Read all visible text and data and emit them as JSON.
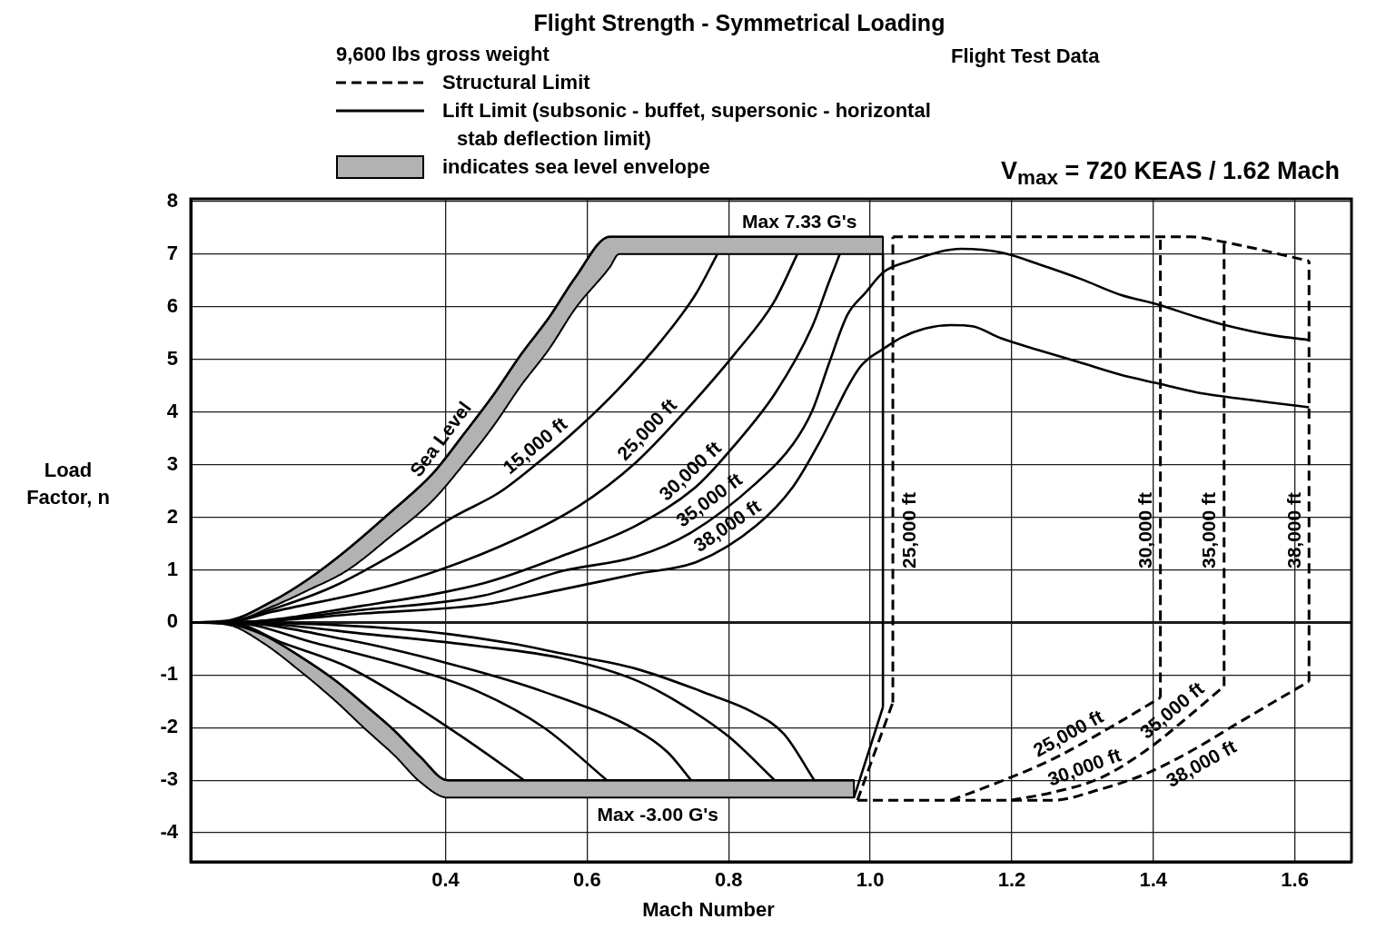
{
  "chart_data": {
    "type": "line",
    "title": "Flight Strength - Symmetrical Loading",
    "subtitle": "Flight Test Data",
    "xlabel": "Mach Number",
    "ylabel": "Load Factor, n",
    "legend_title": "9,600 lbs gross weight",
    "legend": "top left",
    "grid": true,
    "xlim": [
      0.04,
      1.68
    ],
    "xticks": [
      0.4,
      0.6,
      0.8,
      {
        "value": 1,
        "label": "1.0"
      },
      1.2,
      1.4,
      1.6
    ],
    "ylim": [
      -4.55,
      8.05
    ],
    "yticks": [
      -4,
      -3,
      -2,
      -1,
      0,
      1,
      2,
      3,
      4,
      5,
      6,
      7,
      8
    ],
    "series": [
      {
        "name": "Structural Limit",
        "line_style": "dashed",
        "color": "#000000",
        "x": [
          1.032,
          1.452,
          1.5,
          1.62
        ],
        "values": [
          7.33,
          7.33,
          7.23,
          6.87
        ]
      },
      {
        "line_style": "dashed",
        "color": "#000000",
        "x": [
          0.982,
          1.032
        ],
        "values": [
          -3.38,
          -1.52
        ]
      },
      {
        "line_style": "dashed",
        "color": "#000000",
        "x": [
          1.032,
          1.032
        ],
        "values": [
          -1.52,
          7.33
        ]
      },
      {
        "line_style": "dashed",
        "color": "#000000",
        "x": [
          0.982,
          1.258,
          1.323,
          1.389,
          1.454,
          1.52,
          1.62
        ],
        "values": [
          -3.38,
          -3.38,
          -3.18,
          -2.88,
          -2.44,
          -1.91,
          -1.12
        ]
      },
      {
        "line_style": "dashed",
        "color": "#000000",
        "x": [
          1.62,
          1.62
        ],
        "values": [
          -1.12,
          6.87
        ]
      },
      {
        "line_style": "dashed",
        "color": "#000000",
        "x": [
          1.114,
          1.179,
          1.256,
          1.35,
          1.41
        ],
        "values": [
          -3.38,
          -3.05,
          -2.61,
          -1.91,
          -1.43
        ]
      },
      {
        "line_style": "dashed",
        "color": "#000000",
        "x": [
          1.41,
          1.41
        ],
        "values": [
          -1.43,
          7.33
        ]
      },
      {
        "line_style": "dashed",
        "color": "#000000",
        "x": [
          1.199,
          1.258,
          1.323,
          1.389,
          1.454,
          1.5
        ],
        "values": [
          -3.38,
          -3.23,
          -2.97,
          -2.44,
          -1.74,
          -1.21
        ]
      },
      {
        "line_style": "dashed",
        "color": "#000000",
        "x": [
          1.5,
          1.5
        ],
        "values": [
          -1.21,
          7.23
        ]
      },
      {
        "name": "Lift Limit (subsonic - buffet, supersonic - horizontal stab deflection limit)",
        "line_style": "solid",
        "color": "#000000",
        "x": [
          0.04,
          0.091,
          0.155,
          0.241,
          0.327,
          0.412,
          0.476,
          0.531,
          0.588,
          0.643,
          0.707,
          0.754,
          0.784
        ],
        "values": [
          0,
          0.01,
          0.25,
          0.68,
          1.3,
          2.01,
          2.47,
          3.04,
          3.7,
          4.42,
          5.39,
          6.25,
          7.0
        ]
      },
      {
        "line_style": "solid",
        "color": "#000000",
        "x": [
          0.04,
          0.091,
          0.155,
          0.327,
          0.476,
          0.588,
          0.669,
          0.737,
          0.809,
          0.864,
          0.897
        ],
        "values": [
          0,
          0,
          0.2,
          0.72,
          1.44,
          2.21,
          3.04,
          3.99,
          5.11,
          6.09,
          7.0
        ]
      },
      {
        "line_style": "solid",
        "color": "#000000",
        "x": [
          0.04,
          0.091,
          0.284,
          0.455,
          0.566,
          0.669,
          0.754,
          0.806,
          0.866,
          0.918,
          0.942,
          0.957
        ],
        "values": [
          0,
          0,
          0.32,
          0.75,
          1.27,
          1.84,
          2.58,
          3.33,
          4.36,
          5.62,
          6.48,
          7.0
        ]
      },
      {
        "line_style": "solid",
        "color": "#000000",
        "x": [
          0.04,
          0.091,
          0.284,
          0.454,
          0.566,
          0.669,
          0.746,
          0.839,
          0.891,
          0.918,
          0.942,
          0.968,
          0.993,
          1.019,
          1.054,
          1.129,
          1.185,
          1.242,
          1.299,
          1.353,
          1.407,
          1.462,
          1.496,
          1.572,
          1.62
        ],
        "values": [
          0,
          0,
          0.24,
          0.51,
          0.98,
          1.25,
          1.7,
          2.65,
          3.39,
          4.02,
          4.93,
          5.85,
          6.26,
          6.66,
          6.86,
          7.1,
          7.03,
          6.79,
          6.52,
          6.23,
          6.04,
          5.8,
          5.67,
          5.45,
          5.37
        ]
      },
      {
        "line_style": "solid",
        "color": "#000000",
        "x": [
          0.04,
          0.091,
          0.284,
          0.454,
          0.566,
          0.669,
          0.755,
          0.839,
          0.891,
          0.929,
          0.951,
          0.968,
          0.986,
          1.0,
          1.015,
          1.045,
          1.079,
          1.114,
          1.144,
          1.185,
          1.242,
          1.299,
          1.353,
          1.407,
          1.462,
          1.496,
          1.62
        ],
        "values": [
          0,
          0,
          0.17,
          0.34,
          0.63,
          0.92,
          1.15,
          1.84,
          2.58,
          3.44,
          4.02,
          4.47,
          4.86,
          5.04,
          5.17,
          5.42,
          5.59,
          5.65,
          5.63,
          5.4,
          5.16,
          4.93,
          4.71,
          4.54,
          4.37,
          4.3,
          4.09
        ]
      },
      {
        "line_style": "solid",
        "color": "#000000",
        "x": [
          0.04,
          0.094,
          0.172,
          0.264,
          0.355,
          0.424,
          0.511
        ],
        "values": [
          0,
          0,
          -0.4,
          -0.86,
          -1.57,
          -2.18,
          -3.0
        ]
      },
      {
        "line_style": "solid",
        "color": "#000000",
        "x": [
          0.04,
          0.094,
          0.218,
          0.355,
          0.447,
          0.539,
          0.628
        ],
        "values": [
          0,
          0,
          -0.4,
          -0.89,
          -1.32,
          -2.0,
          -3.0
        ]
      },
      {
        "line_style": "solid",
        "color": "#000000",
        "x": [
          0.04,
          0.094,
          0.264,
          0.401,
          0.539,
          0.669,
          0.714,
          0.747
        ],
        "values": [
          0,
          0,
          -0.34,
          -0.77,
          -1.32,
          -2.04,
          -2.47,
          -3.0
        ]
      },
      {
        "line_style": "solid",
        "color": "#000000",
        "x": [
          0.04,
          0.094,
          0.309,
          0.447,
          0.564,
          0.669,
          0.734,
          0.8,
          0.865
        ],
        "values": [
          0,
          0,
          -0.25,
          -0.45,
          -0.68,
          -1.1,
          -1.56,
          -2.17,
          -3.0
        ]
      },
      {
        "line_style": "solid",
        "color": "#000000",
        "x": [
          0.04,
          0.094,
          0.355,
          0.493,
          0.564,
          0.669,
          0.773,
          0.833,
          0.878,
          0.921
        ],
        "values": [
          0,
          0,
          -0.15,
          -0.4,
          -0.59,
          -0.88,
          -1.37,
          -1.7,
          -2.12,
          -3.0
        ]
      },
      {
        "line_style": "solid",
        "color": "#000000",
        "x": [
          0.977,
          1.018
        ],
        "values": [
          -3.33,
          -1.61
        ]
      },
      {
        "line_style": "solid",
        "color": "#000000",
        "x": [
          1.018,
          1.018
        ],
        "values": [
          -1.61,
          7.0
        ]
      },
      {
        "name": "indicates sea level envelope",
        "line_style": "solid",
        "color": "#000000",
        "x": [
          0.04,
          0.091,
          0.155,
          0.207,
          0.26,
          0.322,
          0.382,
          0.427,
          0.468,
          0.506,
          0.547,
          0.583,
          0.632,
          0.645,
          1.018
        ],
        "values": [
          0,
          0.03,
          0.4,
          0.83,
          1.37,
          2.09,
          2.83,
          3.6,
          4.33,
          5.08,
          5.81,
          6.55,
          7.33,
          7.33,
          7.33
        ],
        "upper": [
          0,
          0.03,
          0.4,
          0.83,
          1.37,
          2.09,
          2.83,
          3.6,
          4.33,
          5.08,
          5.81,
          6.55,
          7.33,
          7.33,
          7.33
        ],
        "lower": [
          0,
          0,
          0.3,
          0.62,
          0.98,
          1.63,
          2.32,
          3.03,
          3.74,
          4.49,
          5.21,
          5.96,
          6.75,
          7.0,
          7.0
        ]
      },
      {
        "line_style": "solid",
        "color": "#000000",
        "x": [
          0.04,
          0.094,
          0.14,
          0.195,
          0.245,
          0.286,
          0.328,
          0.364,
          0.403,
          0.977
        ],
        "values": [
          0,
          -0.03,
          -0.22,
          -0.65,
          -1.11,
          -1.57,
          -2.06,
          -2.55,
          -3.0,
          -3.0
        ],
        "upper": [
          0,
          -0.03,
          -0.22,
          -0.65,
          -1.11,
          -1.57,
          -2.06,
          -2.55,
          -3.0,
          -3.0
        ],
        "lower": [
          0,
          -0.05,
          -0.37,
          -0.93,
          -1.5,
          -2.02,
          -2.53,
          -3.03,
          -3.33,
          -3.33
        ]
      }
    ],
    "annotations": [
      "V$_{max}$ = 720 KEAS / 1.62 Mach",
      {
        "text": "Max 7.33 G's",
        "x": 0.9,
        "y": 7.33
      },
      {
        "text": "Max -3.00 G's",
        "x": 0.7,
        "y": -3.0
      },
      {
        "text": "Sea Level",
        "x": 0.41,
        "y": 3.31
      },
      {
        "text": "15,000 ft",
        "x": 0.54,
        "y": 3.14
      },
      {
        "text": "25,000 ft",
        "x": 0.7,
        "y": 3.47
      },
      {
        "text": "30,000 ft",
        "x": 0.76,
        "y": 2.67
      },
      {
        "text": "35,000 ft",
        "x": 0.785,
        "y": 2.1
      },
      {
        "text": "38,000 ft",
        "x": 0.81,
        "y": 1.6
      },
      {
        "text": "25,000 ft",
        "x": 1.032,
        "y": 1.75
      },
      {
        "text": "30,000 ft",
        "x": 1.41,
        "y": 1.75
      },
      {
        "text": "35,000 ft",
        "x": 1.5,
        "y": 1.75
      },
      {
        "text": "38,000 ft",
        "x": 1.62,
        "y": 1.75
      },
      {
        "text": "25,000 ft",
        "x": 1.29,
        "y": -2.36
      },
      {
        "text": "30,000 ft",
        "x": 1.31,
        "y": -3.02
      },
      {
        "text": "35,000 ft",
        "x": 1.44,
        "y": -1.89
      },
      {
        "text": "38,000 ft",
        "x": 1.457,
        "y": -2.42
      }
    ]
  }
}
